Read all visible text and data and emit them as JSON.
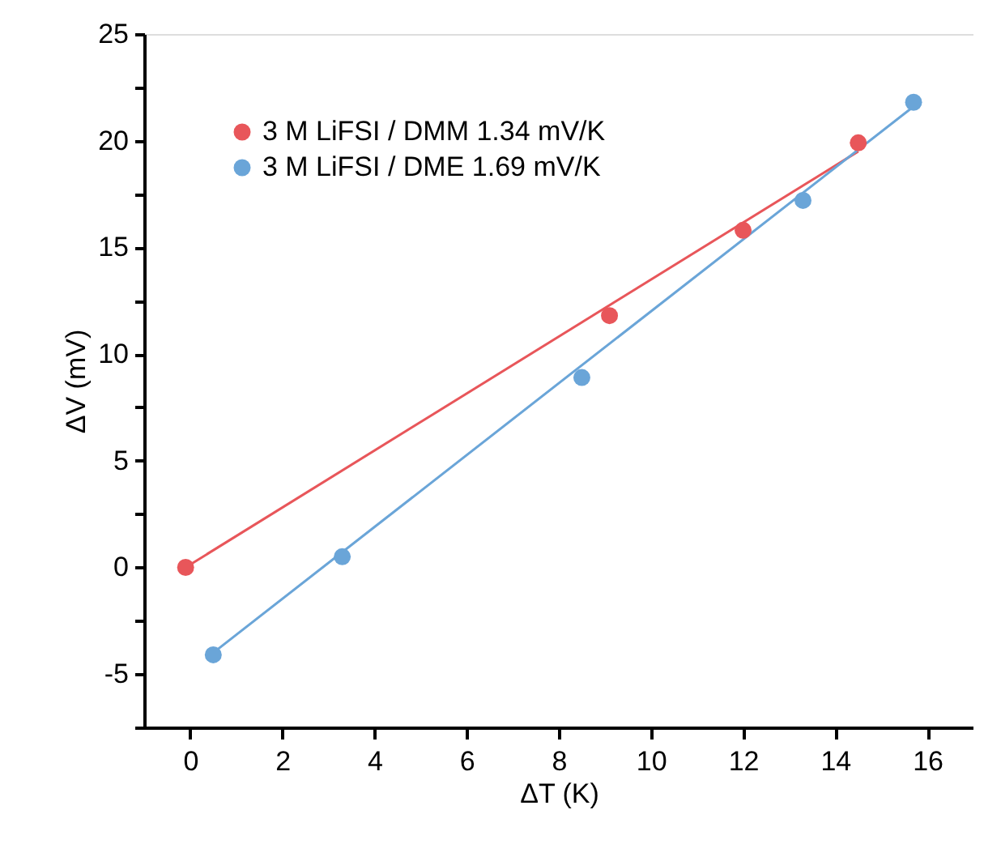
{
  "chart_data": {
    "type": "scatter",
    "xlabel": "ΔT (K)",
    "ylabel": "ΔV (mV)",
    "xlim": [
      -1,
      17
    ],
    "xticks": [
      0,
      2,
      4,
      6,
      8,
      10,
      12,
      14,
      16
    ],
    "ylim": [
      -7.5,
      25
    ],
    "yticks": [
      {
        "value": -7.5,
        "label": null
      },
      -5,
      {
        "value": -2.5,
        "label": null
      },
      0,
      {
        "value": 2.5,
        "label": null
      },
      5,
      {
        "value": 7.5,
        "label": null
      },
      10,
      {
        "value": 12.5,
        "label": null
      },
      15,
      {
        "value": 17.5,
        "label": null
      },
      20,
      {
        "value": 22.5,
        "label": null
      },
      25
    ],
    "grid": false,
    "legend": "top left",
    "series": [
      {
        "name": "3 M LiFSI / DMM  1.34 mV/K",
        "color": "#e8565a",
        "marker": "circle",
        "x": [
          -0.1,
          9.1,
          12,
          14.5
        ],
        "values": [
          0,
          11.8,
          15.8,
          19.9
        ]
      },
      {
        "name": "3 M LiFSI / DME  1.69 mV/K",
        "color": "#6aa5d8",
        "marker": "circle",
        "x": [
          0.5,
          3.3,
          8.5,
          13.3,
          15.7
        ],
        "values": [
          -4.1,
          0.5,
          8.9,
          17.2,
          21.8
        ]
      },
      {
        "type": "line",
        "marker": "none",
        "color": "#e8565a",
        "x": [
          -0.1,
          14.5
        ],
        "values": [
          0.0,
          19.5
        ]
      },
      {
        "type": "line",
        "marker": "none",
        "color": "#6aa5d8",
        "x": [
          0.5,
          15.7
        ],
        "values": [
          -4.0,
          21.6
        ]
      }
    ]
  }
}
